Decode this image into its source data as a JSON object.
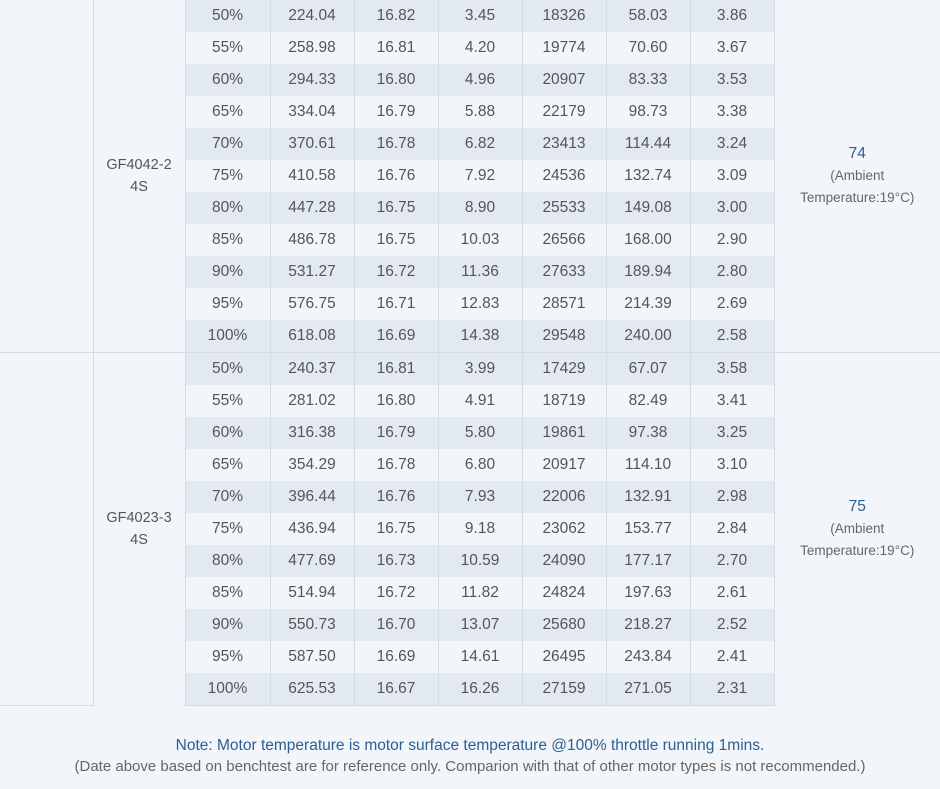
{
  "groups": [
    {
      "model": "GF4042-2",
      "cells": "4S",
      "temperature": "74",
      "ambient_line1": "(Ambient",
      "ambient_line2": "Temperature:19°C)",
      "rows": [
        [
          "50%",
          "224.04",
          "16.82",
          "3.45",
          "18326",
          "58.03",
          "3.86"
        ],
        [
          "55%",
          "258.98",
          "16.81",
          "4.20",
          "19774",
          "70.60",
          "3.67"
        ],
        [
          "60%",
          "294.33",
          "16.80",
          "4.96",
          "20907",
          "83.33",
          "3.53"
        ],
        [
          "65%",
          "334.04",
          "16.79",
          "5.88",
          "22179",
          "98.73",
          "3.38"
        ],
        [
          "70%",
          "370.61",
          "16.78",
          "6.82",
          "23413",
          "114.44",
          "3.24"
        ],
        [
          "75%",
          "410.58",
          "16.76",
          "7.92",
          "24536",
          "132.74",
          "3.09"
        ],
        [
          "80%",
          "447.28",
          "16.75",
          "8.90",
          "25533",
          "149.08",
          "3.00"
        ],
        [
          "85%",
          "486.78",
          "16.75",
          "10.03",
          "26566",
          "168.00",
          "2.90"
        ],
        [
          "90%",
          "531.27",
          "16.72",
          "11.36",
          "27633",
          "189.94",
          "2.80"
        ],
        [
          "95%",
          "576.75",
          "16.71",
          "12.83",
          "28571",
          "214.39",
          "2.69"
        ],
        [
          "100%",
          "618.08",
          "16.69",
          "14.38",
          "29548",
          "240.00",
          "2.58"
        ]
      ]
    },
    {
      "model": "GF4023-3",
      "cells": "4S",
      "temperature": "75",
      "ambient_line1": "(Ambient",
      "ambient_line2": "Temperature:19°C)",
      "rows": [
        [
          "50%",
          "240.37",
          "16.81",
          "3.99",
          "17429",
          "67.07",
          "3.58"
        ],
        [
          "55%",
          "281.02",
          "16.80",
          "4.91",
          "18719",
          "82.49",
          "3.41"
        ],
        [
          "60%",
          "316.38",
          "16.79",
          "5.80",
          "19861",
          "97.38",
          "3.25"
        ],
        [
          "65%",
          "354.29",
          "16.78",
          "6.80",
          "20917",
          "114.10",
          "3.10"
        ],
        [
          "70%",
          "396.44",
          "16.76",
          "7.93",
          "22006",
          "132.91",
          "2.98"
        ],
        [
          "75%",
          "436.94",
          "16.75",
          "9.18",
          "23062",
          "153.77",
          "2.84"
        ],
        [
          "80%",
          "477.69",
          "16.73",
          "10.59",
          "24090",
          "177.17",
          "2.70"
        ],
        [
          "85%",
          "514.94",
          "16.72",
          "11.82",
          "24824",
          "197.63",
          "2.61"
        ],
        [
          "90%",
          "550.73",
          "16.70",
          "13.07",
          "25680",
          "218.27",
          "2.52"
        ],
        [
          "95%",
          "587.50",
          "16.69",
          "14.61",
          "26495",
          "243.84",
          "2.41"
        ],
        [
          "100%",
          "625.53",
          "16.67",
          "16.26",
          "27159",
          "271.05",
          "2.31"
        ]
      ]
    }
  ],
  "notes": {
    "line1": "Note: Motor temperature is motor surface temperature @100% throttle running 1mins.",
    "line2": "(Date above based on benchtest are for reference only. Comparion with that of other motor types is not recommended.)"
  },
  "colors": {
    "accent": "#2c5e93",
    "row_shaded": "#e3e9f0",
    "row_light": "#f2f6fa",
    "border": "#d3dbe3"
  }
}
